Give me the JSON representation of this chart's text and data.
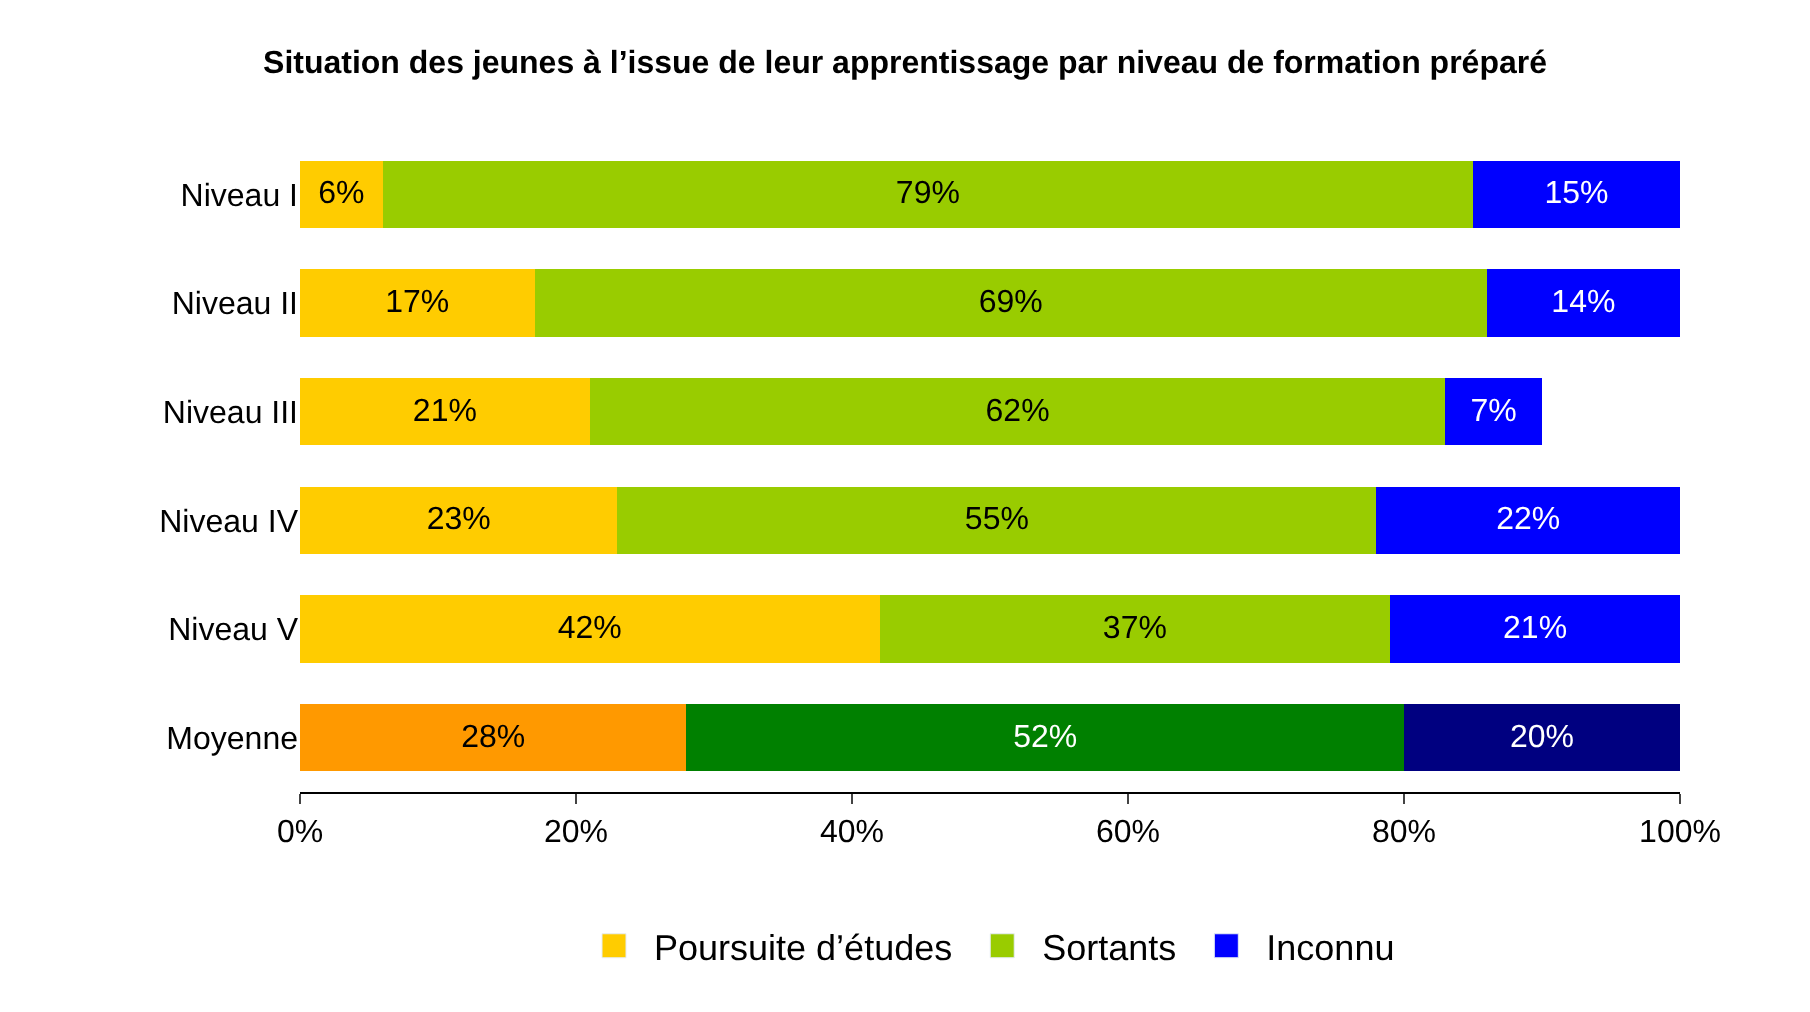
{
  "chart_data": {
    "type": "bar",
    "orientation": "horizontal",
    "stacked": true,
    "title": "Situation des jeunes à l’issue de leur apprentissage par niveau de formation préparé",
    "categories": [
      "Niveau I",
      "Niveau II",
      "Niveau III",
      "Niveau IV",
      "Niveau V",
      "Moyenne"
    ],
    "series": [
      {
        "name": "Poursuite d’études",
        "color": "#ffcc00",
        "colors": [
          "#ffcc00",
          "#ffcc00",
          "#ffcc00",
          "#ffcc00",
          "#ffcc00",
          "#ff9900"
        ],
        "values": [
          6,
          17,
          21,
          23,
          42,
          28
        ],
        "value_labels": [
          "6%",
          "17%",
          "21%",
          "23%",
          "42%",
          "28%"
        ]
      },
      {
        "name": "Sortants",
        "color": "#99cc00",
        "colors": [
          "#99cc00",
          "#99cc00",
          "#99cc00",
          "#99cc00",
          "#99cc00",
          "#008000"
        ],
        "values": [
          79,
          69,
          62,
          55,
          37,
          52
        ],
        "value_labels": [
          "79%",
          "69%",
          "62%",
          "55%",
          "37%",
          "52%"
        ]
      },
      {
        "name": "Inconnu",
        "color": "#0000ff",
        "colors": [
          "#0000ff",
          "#0000ff",
          "#0000ff",
          "#0000ff",
          "#0000ff",
          "#000080"
        ],
        "values": [
          15,
          14,
          7,
          22,
          21,
          20
        ],
        "value_labels": [
          "15%",
          "14%",
          "7%",
          "22%",
          "21%",
          "20%"
        ]
      }
    ],
    "xlim": [
      0,
      100
    ],
    "xticks": [
      {
        "value": 0,
        "label": "0%"
      },
      {
        "value": 20,
        "label": "20%"
      },
      {
        "value": 40,
        "label": "40%"
      },
      {
        "value": 60,
        "label": "60%"
      },
      {
        "value": 80,
        "label": "80%"
      },
      {
        "value": 100,
        "label": "100%"
      }
    ],
    "legend": "bottom"
  }
}
